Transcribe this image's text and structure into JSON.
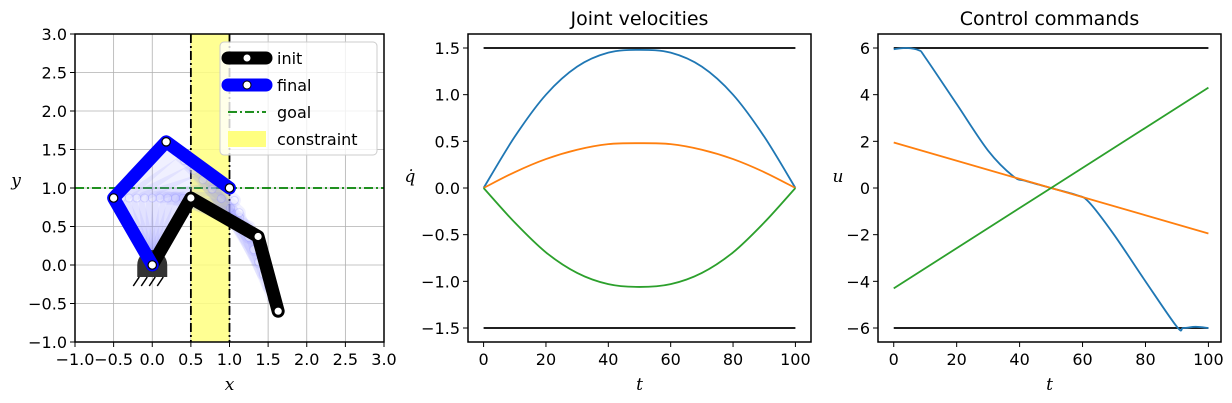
{
  "chart_data": [
    {
      "type": "line",
      "title": "",
      "xlabel": "x",
      "ylabel": "y",
      "xlim": [
        -1.0,
        3.0
      ],
      "ylim": [
        -1.0,
        3.0
      ],
      "xticks": [
        "−1.0",
        "−0.5",
        "0.0",
        "0.5",
        "1.0",
        "1.5",
        "2.0",
        "2.5",
        "3.0"
      ],
      "yticks": [
        "−1.0",
        "−0.5",
        "0.0",
        "0.5",
        "1.0",
        "1.5",
        "2.0",
        "2.5",
        "3.0"
      ],
      "grid": true,
      "legend": {
        "position": "top-right",
        "entries": [
          "init",
          "final",
          "goal",
          "constraint"
        ]
      },
      "colors": {
        "init": "#000000",
        "final": "#0000ff",
        "goal": "#008000",
        "constraint": "#ffff80",
        "constraint_edge": "#000000",
        "trail": "#8080ff"
      },
      "constraint": {
        "x_range": [
          0.5,
          1.0
        ]
      },
      "goal": {
        "y": 1.0
      },
      "init_arm": [
        [
          0.0,
          0.0
        ],
        [
          0.5,
          0.87
        ],
        [
          1.37,
          0.37
        ],
        [
          1.63,
          -0.6
        ]
      ],
      "final_arm": [
        [
          0.0,
          0.0
        ],
        [
          -0.5,
          0.87
        ],
        [
          0.18,
          1.6
        ],
        [
          1.0,
          1.0
        ]
      ]
    },
    {
      "type": "line",
      "title": "Joint velocities",
      "xlabel": "t",
      "ylabel": "q̇",
      "xlim": [
        -5,
        105
      ],
      "ylim": [
        -1.65,
        1.65
      ],
      "xticks": [
        "0",
        "20",
        "40",
        "60",
        "80",
        "100"
      ],
      "yticks": [
        "−1.5",
        "−1.0",
        "−0.5",
        "0.0",
        "0.5",
        "1.0",
        "1.5"
      ],
      "grid": false,
      "bounds": [
        1.5,
        -1.5
      ],
      "series": [
        {
          "color": "#1f77b4",
          "x": [
            0,
            10,
            20,
            30,
            40,
            50,
            60,
            70,
            80,
            90,
            100
          ],
          "values": [
            0,
            0.55,
            1.0,
            1.3,
            1.45,
            1.48,
            1.45,
            1.3,
            1.0,
            0.55,
            0
          ]
        },
        {
          "color": "#ff7f0e",
          "x": [
            0,
            10,
            20,
            30,
            40,
            50,
            60,
            70,
            80,
            90,
            100
          ],
          "values": [
            0,
            0.17,
            0.31,
            0.41,
            0.47,
            0.48,
            0.47,
            0.41,
            0.31,
            0.17,
            0
          ]
        },
        {
          "color": "#2ca02c",
          "x": [
            0,
            10,
            20,
            30,
            40,
            50,
            60,
            70,
            80,
            90,
            100
          ],
          "values": [
            0,
            -0.37,
            -0.69,
            -0.91,
            -1.03,
            -1.06,
            -1.03,
            -0.91,
            -0.69,
            -0.37,
            0
          ]
        }
      ]
    },
    {
      "type": "line",
      "title": "Control commands",
      "xlabel": "t",
      "ylabel": "u",
      "xlim": [
        -5,
        104
      ],
      "ylim": [
        -6.6,
        6.6
      ],
      "xticks": [
        "0",
        "20",
        "40",
        "60",
        "80",
        "100"
      ],
      "yticks": [
        "−6",
        "−4",
        "−2",
        "0",
        "2",
        "4",
        "6"
      ],
      "grid": false,
      "bounds": [
        6,
        -6
      ],
      "series": [
        {
          "color": "#1f77b4",
          "x": [
            0,
            4,
            8,
            10,
            20,
            30,
            38,
            42,
            50,
            58,
            62,
            70,
            80,
            90,
            92,
            96,
            100
          ],
          "values": [
            5.95,
            6.0,
            5.9,
            5.6,
            3.6,
            1.6,
            0.5,
            0.3,
            0.0,
            -0.3,
            -0.6,
            -2.0,
            -4.0,
            -5.95,
            -6.0,
            -5.95,
            -6.0
          ]
        },
        {
          "color": "#ff7f0e",
          "x": [
            0,
            100
          ],
          "values": [
            1.95,
            -1.95
          ]
        },
        {
          "color": "#2ca02c",
          "x": [
            0,
            100
          ],
          "values": [
            -4.3,
            4.3
          ]
        }
      ]
    }
  ]
}
